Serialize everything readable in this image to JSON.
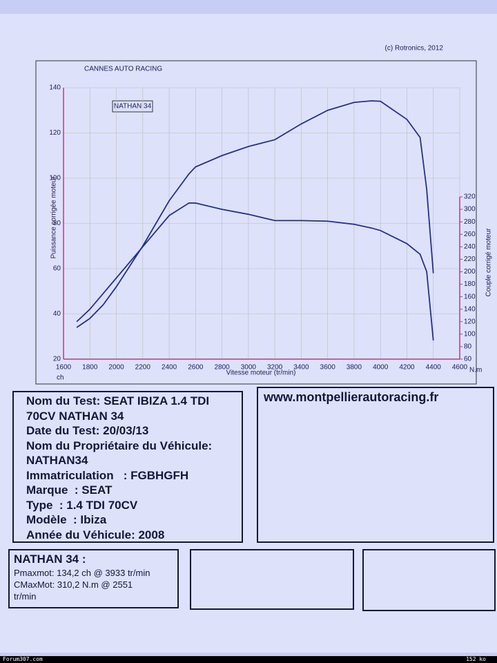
{
  "chart_data": {
    "type": "line",
    "title": "CANNES AUTO RACING",
    "copyright": "(c) Rotronics, 2012",
    "annotation": "NATHAN 34",
    "xlabel": "Vitesse moteur (tr/min)",
    "ylabel": "Puissance corrigée moteur",
    "y2label": "Couple corrigé moteur",
    "yunit": "ch",
    "y2unit": "N.m",
    "x": [
      1700,
      1800,
      1900,
      2000,
      2200,
      2400,
      2551,
      2600,
      2800,
      3000,
      3200,
      3400,
      3600,
      3800,
      3933,
      4000,
      4200,
      4300,
      4350,
      4400
    ],
    "series": [
      {
        "name": "Puissance",
        "color": "#23318c",
        "values": [
          34,
          38,
          44,
          52,
          70,
          90,
          102,
          105,
          110,
          114,
          117,
          124,
          130,
          133.5,
          134.2,
          134,
          126,
          118,
          95,
          58
        ]
      },
      {
        "name": "Couple",
        "color": "#23318c",
        "axis": "y2",
        "values": [
          120,
          140,
          165,
          190,
          240,
          290,
          310.2,
          310,
          300,
          292,
          282,
          282,
          281,
          276,
          270,
          266,
          245,
          228,
          200,
          90
        ]
      }
    ],
    "xlim": [
      1600,
      4600
    ],
    "xticks": [
      1600,
      1800,
      2000,
      2200,
      2400,
      2600,
      2800,
      3000,
      3200,
      3400,
      3600,
      3800,
      4000,
      4200,
      4400,
      4600
    ],
    "ylim": [
      20,
      140
    ],
    "yticks": [
      20,
      40,
      60,
      80,
      100,
      120,
      140
    ],
    "y2lim": [
      60,
      320
    ],
    "y2ticks": [
      60,
      80,
      100,
      120,
      140,
      160,
      180,
      200,
      220,
      240,
      260,
      280,
      300,
      320
    ],
    "grid": true
  },
  "test_info": {
    "lines": [
      "Nom du Test: SEAT IBIZA 1.4 TDI",
      "70CV NATHAN 34",
      "Date du Test: 20/03/13",
      "Nom du Propriétaire du Véhicule:",
      "NATHAN34",
      "Immatriculation   : FGBHGFH",
      "Marque  : SEAT",
      "Type  : 1.4 TDI 70CV",
      "Modèle  : Ibiza",
      "Année du Véhicule: 2008"
    ]
  },
  "website": "www.montpellierautoracing.fr",
  "results": {
    "lines": [
      "NATHAN 34 :",
      "Pmaxmot: 134,2 ch @ 3933 tr/min",
      "CMaxMot: 310,2 N.m @ 2551",
      "tr/min"
    ]
  },
  "footer": {
    "left": "Forum307.com",
    "right": "152 ko"
  }
}
